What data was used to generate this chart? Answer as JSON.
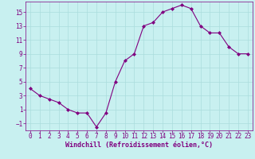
{
  "x": [
    0,
    1,
    2,
    3,
    4,
    5,
    6,
    7,
    8,
    9,
    10,
    11,
    12,
    13,
    14,
    15,
    16,
    17,
    18,
    19,
    20,
    21,
    22,
    23
  ],
  "y": [
    4.0,
    3.0,
    2.5,
    2.0,
    1.0,
    0.5,
    0.5,
    -1.5,
    0.5,
    5.0,
    8.0,
    9.0,
    13.0,
    13.5,
    15.0,
    15.5,
    16.0,
    15.5,
    13.0,
    12.0,
    12.0,
    10.0,
    9.0,
    9.0
  ],
  "line_color": "#800080",
  "marker": "D",
  "marker_size": 2,
  "bg_color": "#c8f0f0",
  "grid_color": "#aadddd",
  "xlabel": "Windchill (Refroidissement éolien,°C)",
  "xlabel_color": "#800080",
  "tick_color": "#800080",
  "xlim": [
    -0.5,
    23.5
  ],
  "ylim": [
    -2.0,
    16.5
  ],
  "yticks": [
    -1,
    1,
    3,
    5,
    7,
    9,
    11,
    13,
    15
  ],
  "xticks": [
    0,
    1,
    2,
    3,
    4,
    5,
    6,
    7,
    8,
    9,
    10,
    11,
    12,
    13,
    14,
    15,
    16,
    17,
    18,
    19,
    20,
    21,
    22,
    23
  ],
  "xlabel_fontsize": 6.0,
  "tick_fontsize": 5.5
}
